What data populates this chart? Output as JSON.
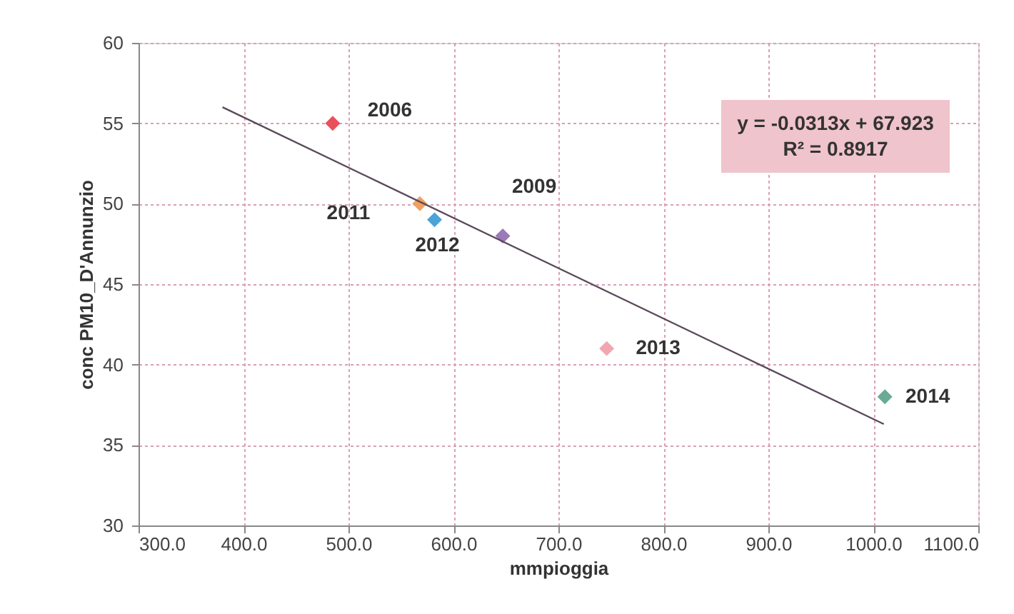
{
  "chart_data": {
    "type": "scatter",
    "xlabel": "mmpioggia",
    "ylabel": "conc PM10_D'Annunzio",
    "xlim": [
      300,
      1100
    ],
    "xticks": [
      {
        "value": 300,
        "label": "300.0"
      },
      {
        "value": 400,
        "label": "400.0"
      },
      {
        "value": 500,
        "label": "500.0"
      },
      {
        "value": 600,
        "label": "600.0"
      },
      {
        "value": 700,
        "label": "700.0"
      },
      {
        "value": 800,
        "label": "800.0"
      },
      {
        "value": 900,
        "label": "900.0"
      },
      {
        "value": 1000,
        "label": "1000.0"
      },
      {
        "value": 1100,
        "label": "1100.0"
      }
    ],
    "ylim": [
      30,
      60
    ],
    "yticks": [
      30,
      35,
      40,
      45,
      50,
      55,
      60
    ],
    "grid": true,
    "marker": "diamond",
    "series": [
      {
        "x": [
          485,
          568,
          582,
          647,
          746,
          1011
        ],
        "values": [
          55,
          50,
          49,
          48,
          41,
          38
        ],
        "colors": [
          "#e8505b",
          "#f0a060",
          "#4ba3d8",
          "#9a7ab8",
          "#f0a8b0",
          "#6aaa96"
        ]
      },
      {
        "type": "line",
        "color": "#5a4a5a",
        "x": [
          380,
          1010
        ],
        "values": [
          56.0,
          36.3
        ],
        "marker": "none"
      }
    ],
    "annotations": [
      {
        "text": "2006",
        "x": 485,
        "y": 55
      },
      {
        "text": "2011",
        "x": 568,
        "y": 50
      },
      {
        "text": "2012",
        "x": 582,
        "y": 49
      },
      {
        "text": "2009",
        "x": 647,
        "y": 48
      },
      {
        "text": "2013",
        "x": 746,
        "y": 41
      },
      {
        "text": "2014",
        "x": 1011,
        "y": 38
      },
      "y = -0.0313x + 67.923\nR² = 0.8917"
    ]
  }
}
